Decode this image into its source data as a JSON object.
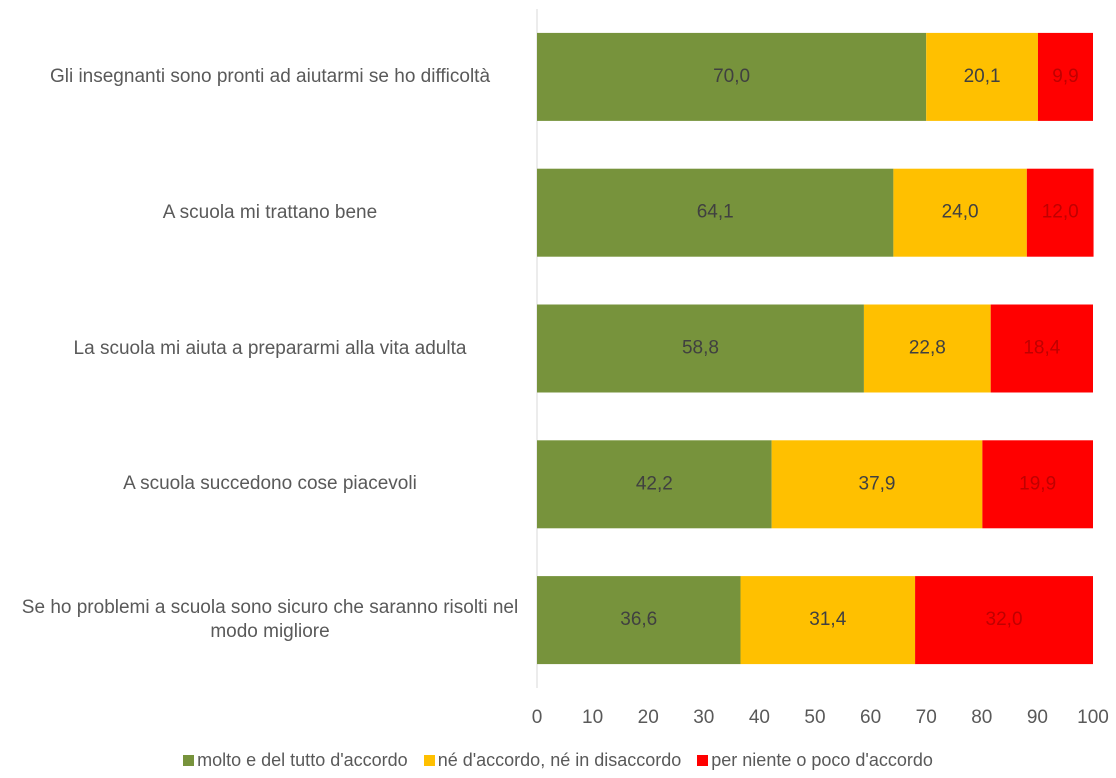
{
  "chart_data": {
    "type": "stacked_bar_horizontal",
    "categories": [
      "Gli insegnanti sono pronti ad aiutarmi se ho difficoltà",
      "A scuola mi trattano bene",
      "La scuola mi aiuta a prepararmi alla vita adulta",
      "A scuola succedono cose piacevoli",
      "Se ho problemi a scuola sono sicuro che saranno risolti nel modo migliore"
    ],
    "series": [
      {
        "name": "molto e del tutto d'accordo",
        "color": "#77933c",
        "values": [
          70.0,
          64.1,
          58.8,
          42.2,
          36.6
        ],
        "value_labels": [
          "70,0",
          "64,1",
          "58,8",
          "42,2",
          "36,6"
        ]
      },
      {
        "name": "né d'accordo, né in disaccordo",
        "color": "#ffc000",
        "values": [
          20.1,
          24.0,
          22.8,
          37.9,
          31.4
        ],
        "value_labels": [
          "20,1",
          "24,0",
          "22,8",
          "37,9",
          "31,4"
        ]
      },
      {
        "name": "per niente o poco d'accordo",
        "color": "#ff0000",
        "values": [
          9.9,
          12.0,
          18.4,
          19.9,
          32.0
        ],
        "value_labels": [
          "9,9",
          "12,0",
          "18,4",
          "19,9",
          "32,0"
        ]
      }
    ],
    "xlim": [
      0,
      100
    ],
    "xticks": [
      0,
      10,
      20,
      30,
      40,
      50,
      60,
      70,
      80,
      90,
      100
    ],
    "legend": "bottom"
  }
}
